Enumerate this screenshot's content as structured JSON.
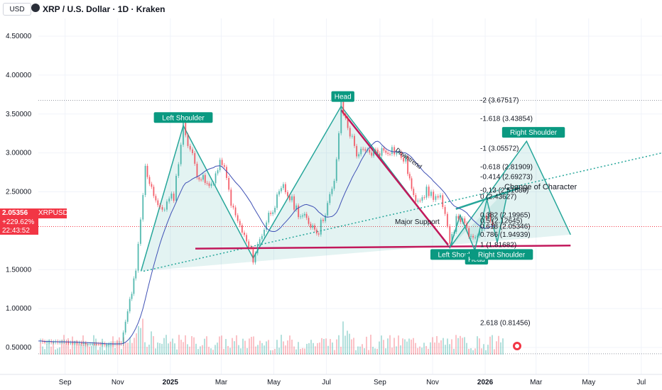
{
  "header": {
    "currency": "USD",
    "title": "XRP / U.S. Dollar · 1D · Kraken"
  },
  "price_label": {
    "price": "2.05356",
    "change": "+229.62%",
    "countdown": "22:43:52",
    "symbol": "XRPUSD"
  },
  "colors": {
    "pattern": "#26a69a",
    "support": "#c2185b",
    "ma": "#3f51b5",
    "price_tag": "#f23645"
  },
  "chart_data": {
    "type": "line",
    "title": "XRP / U.S. Dollar · 1D · Kraken",
    "ylabel": "",
    "xlabel": "",
    "ylim": [
      0.25,
      4.7
    ],
    "yticks": [
      {
        "label": "4.50000",
        "value": 4.5
      },
      {
        "label": "4.00000",
        "value": 4.0
      },
      {
        "label": "3.50000",
        "value": 3.5
      },
      {
        "label": "3.00000",
        "value": 3.0
      },
      {
        "label": "2.50000",
        "value": 2.5
      },
      {
        "label": "1.50000",
        "value": 1.5
      },
      {
        "label": "1.00000",
        "value": 1.0
      },
      {
        "label": "0.50000",
        "value": 0.5
      }
    ],
    "xticks": [
      {
        "label": "Sep",
        "date": "2024-09-01",
        "bold": false
      },
      {
        "label": "Nov",
        "date": "2024-11-01",
        "bold": false
      },
      {
        "label": "2025",
        "date": "2025-01-01",
        "bold": true
      },
      {
        "label": "Mar",
        "date": "2025-03-01",
        "bold": false
      },
      {
        "label": "May",
        "date": "2025-05-01",
        "bold": false
      },
      {
        "label": "Jul",
        "date": "2025-07-01",
        "bold": false
      },
      {
        "label": "Sep",
        "date": "2025-09-01",
        "bold": false
      },
      {
        "label": "Nov",
        "date": "2025-11-01",
        "bold": false
      },
      {
        "label": "2026",
        "date": "2026-01-01",
        "bold": true
      },
      {
        "label": "Mar",
        "date": "2026-03-01",
        "bold": false
      },
      {
        "label": "May",
        "date": "2026-05-01",
        "bold": false
      },
      {
        "label": "Jul",
        "date": "2026-07-01",
        "bold": false
      }
    ],
    "xlim": [
      "2024-08-01",
      "2026-07-25"
    ],
    "series": [
      {
        "name": "",
        "values": [
          {
            "x": "2024-08-01",
            "y": 0.58
          },
          {
            "x": "2024-09-10",
            "y": 0.56
          },
          {
            "x": "2024-10-10",
            "y": 0.54
          },
          {
            "x": "2024-11-05",
            "y": 0.55
          },
          {
            "x": "2024-11-15",
            "y": 1.1
          },
          {
            "x": "2024-11-22",
            "y": 1.45
          },
          {
            "x": "2024-12-03",
            "y": 2.8
          },
          {
            "x": "2024-12-20",
            "y": 2.25
          },
          {
            "x": "2025-01-05",
            "y": 2.45
          },
          {
            "x": "2025-01-16",
            "y": 3.35
          },
          {
            "x": "2025-02-01",
            "y": 2.75
          },
          {
            "x": "2025-02-15",
            "y": 2.55
          },
          {
            "x": "2025-03-02",
            "y": 2.9
          },
          {
            "x": "2025-03-15",
            "y": 2.25
          },
          {
            "x": "2025-04-07",
            "y": 1.65
          },
          {
            "x": "2025-04-25",
            "y": 2.2
          },
          {
            "x": "2025-05-12",
            "y": 2.55
          },
          {
            "x": "2025-06-01",
            "y": 2.2
          },
          {
            "x": "2025-06-22",
            "y": 2.0
          },
          {
            "x": "2025-07-10",
            "y": 2.6
          },
          {
            "x": "2025-07-18",
            "y": 3.6
          },
          {
            "x": "2025-08-05",
            "y": 3.0
          },
          {
            "x": "2025-08-20",
            "y": 3.0
          },
          {
            "x": "2025-09-15",
            "y": 3.05
          },
          {
            "x": "2025-10-01",
            "y": 2.9
          },
          {
            "x": "2025-10-10",
            "y": 2.4
          },
          {
            "x": "2025-10-25",
            "y": 2.5
          },
          {
            "x": "2025-11-10",
            "y": 2.4
          },
          {
            "x": "2025-11-21",
            "y": 1.9
          },
          {
            "x": "2025-12-01",
            "y": 2.2
          },
          {
            "x": "2025-12-18",
            "y": 1.85
          },
          {
            "x": "2026-01-05",
            "y": 2.25
          },
          {
            "x": "2026-01-12",
            "y": 2.05
          }
        ]
      }
    ],
    "horizontal_levels": [
      {
        "value": 3.67517
      },
      {
        "value": 2.05356
      },
      {
        "value": 0.42
      }
    ],
    "support_line": {
      "label": "Major Support",
      "from": {
        "x": "2025-01-30",
        "y": 1.77
      },
      "to": {
        "x": "2026-04-10",
        "y": 1.81
      }
    },
    "ascending_trendline": {
      "from": {
        "x": "2024-12-01",
        "y": 1.48
      },
      "to": {
        "x": "2026-07-25",
        "y": 3.0
      }
    },
    "main_pattern": [
      {
        "x": "2024-11-28",
        "y": 1.48
      },
      {
        "x": "2025-01-16",
        "y": 3.35
      },
      {
        "x": "2025-04-07",
        "y": 1.65
      },
      {
        "x": "2025-07-18",
        "y": 3.6
      },
      {
        "x": "2025-11-21",
        "y": 1.78
      },
      {
        "x": "2026-02-18",
        "y": 3.15
      },
      {
        "x": "2026-04-10",
        "y": 1.95
      }
    ],
    "downtrend": {
      "label": "Downtrend",
      "from": {
        "x": "2025-07-18",
        "y": 3.55
      },
      "to": {
        "x": "2025-11-19",
        "y": 1.82
      }
    },
    "change_of_character": {
      "label": "Change of Character",
      "from": {
        "x": "2025-11-28",
        "y": 2.28
      },
      "to": {
        "x": "2026-02-10",
        "y": 2.55
      }
    },
    "pattern_labels": [
      {
        "text": "Left Shoulder",
        "x": "2025-01-16",
        "y": 3.45
      },
      {
        "text": "Head",
        "x": "2025-07-20",
        "y": 3.72
      },
      {
        "text": "Right Shoulder",
        "x": "2026-02-26",
        "y": 3.26
      },
      {
        "text": "Left Should",
        "x": "2025-11-28",
        "y": 1.69
      },
      {
        "text": "Head",
        "x": "2025-12-22",
        "y": 1.63
      },
      {
        "text": "Right Shoulder",
        "x": "2026-01-20",
        "y": 1.69
      }
    ],
    "fib_levels": [
      {
        "label": "-2 (3.67517)",
        "value": 3.67517
      },
      {
        "label": "-1.618 (3.43854)",
        "value": 3.43854
      },
      {
        "label": "-1 (3.05572)",
        "value": 3.05572
      },
      {
        "label": "-0.618 (2.81909)",
        "value": 2.81909
      },
      {
        "label": "-0.414 (2.69273)",
        "value": 2.69273
      },
      {
        "label": "-0.13 (2.51680)",
        "value": 2.5168
      },
      {
        "label": "0 (2.43627)",
        "value": 2.43627
      },
      {
        "label": "0.382 (2.19965)",
        "value": 2.19965
      },
      {
        "label": "0.5 (2.12645)",
        "value": 2.12645
      },
      {
        "label": "0.618 (2.05346)",
        "value": 2.05346
      },
      {
        "label": "0.786 (1.94939)",
        "value": 1.94939
      },
      {
        "label": "1 (1.81682)",
        "value": 1.81682
      },
      {
        "label": "2.618 (0.81456)",
        "value": 0.81456
      }
    ]
  }
}
